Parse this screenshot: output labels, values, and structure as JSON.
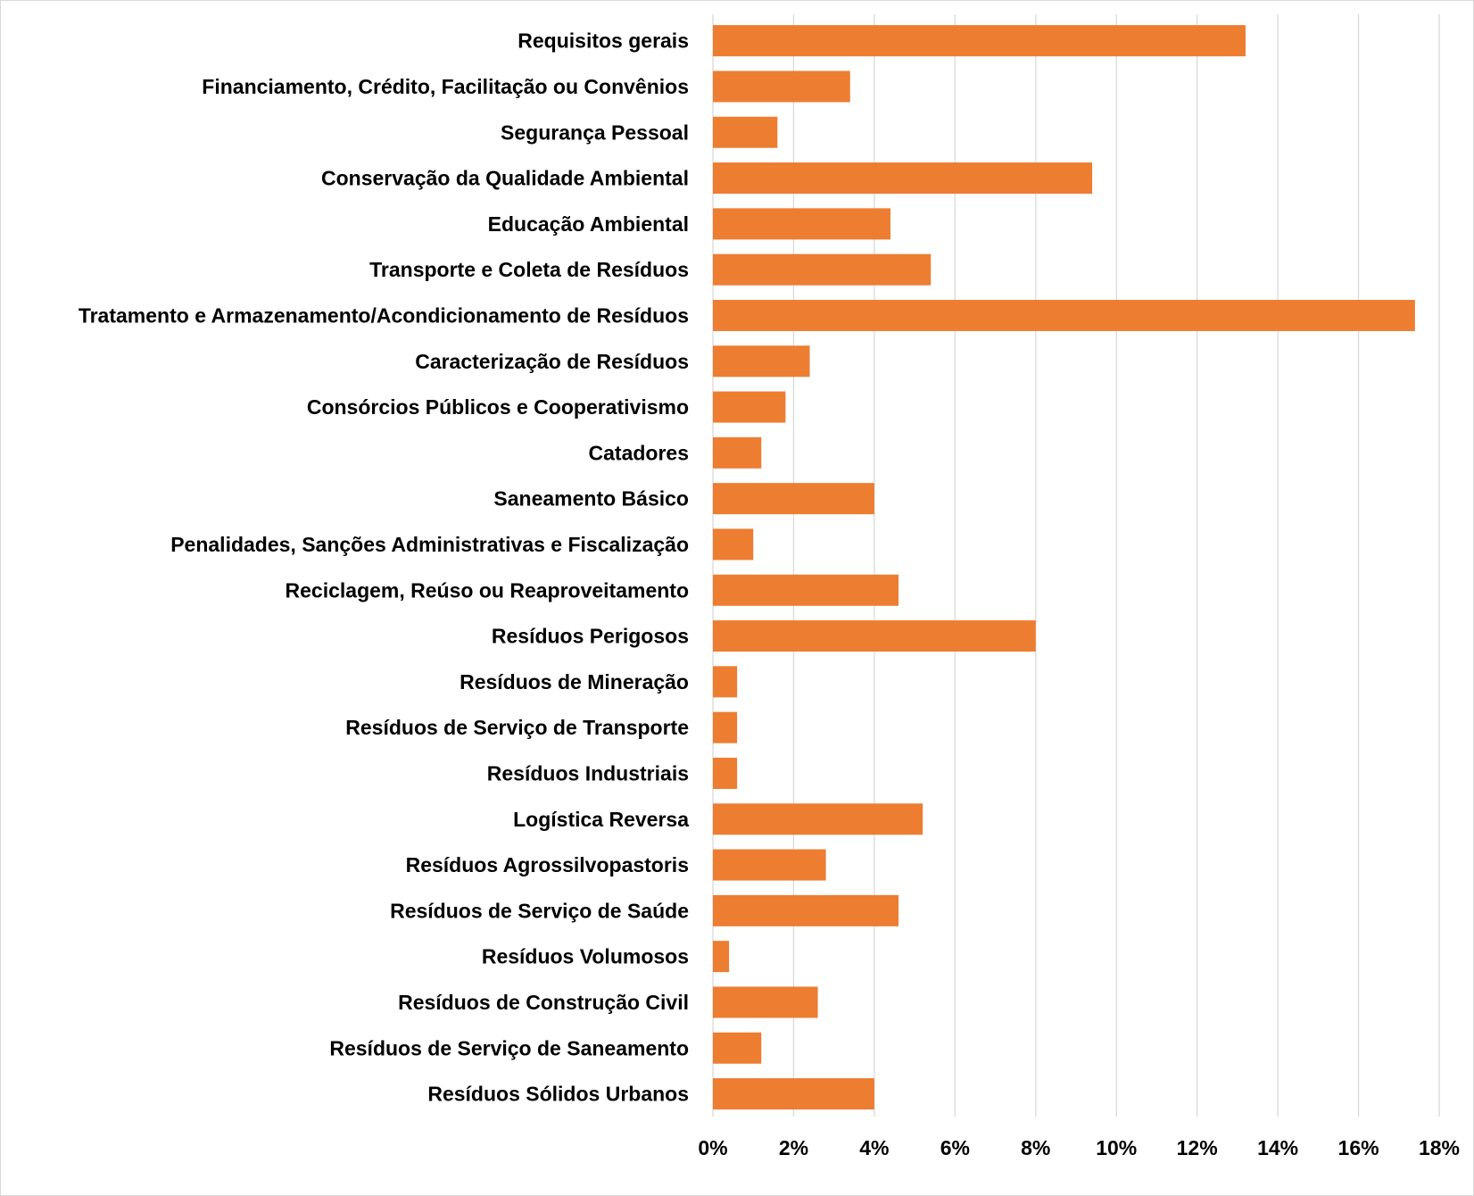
{
  "chart_data": {
    "type": "bar",
    "orientation": "horizontal",
    "title": "",
    "xlabel": "",
    "ylabel": "",
    "categories": [
      "Requisitos gerais",
      "Financiamento, Crédito, Facilitação ou Convênios",
      "Segurança Pessoal",
      "Conservação da Qualidade Ambiental",
      "Educação Ambiental",
      "Transporte e Coleta de Resíduos",
      "Tratamento e Armazenamento/Acondicionamento de Resíduos",
      "Caracterização de Resíduos",
      "Consórcios Públicos e Cooperativismo",
      "Catadores",
      "Saneamento Básico",
      "Penalidades, Sanções Administrativas e Fiscalização",
      "Reciclagem, Reúso ou Reaproveitamento",
      "Resíduos Perigosos",
      "Resíduos de Mineração",
      "Resíduos de Serviço de Transporte",
      "Resíduos Industriais",
      "Logística Reversa",
      "Resíduos Agrossilvopastoris",
      "Resíduos de Serviço de Saúde",
      "Resíduos Volumosos",
      "Resíduos de Construção Civil",
      "Resíduos de Serviço de Saneamento",
      "Resíduos Sólidos Urbanos"
    ],
    "values": [
      13.2,
      3.4,
      1.6,
      9.4,
      4.4,
      5.4,
      17.4,
      2.4,
      1.8,
      1.2,
      4.0,
      1.0,
      4.6,
      8.0,
      0.6,
      0.6,
      0.6,
      5.2,
      2.8,
      4.6,
      0.4,
      2.6,
      1.2,
      4.0
    ],
    "xlim": [
      0,
      18
    ],
    "ticks": [
      "0%",
      "2%",
      "4%",
      "6%",
      "8%",
      "10%",
      "12%",
      "14%",
      "16%",
      "18%"
    ],
    "tick_values": [
      0,
      2,
      4,
      6,
      8,
      10,
      12,
      14,
      16,
      18
    ],
    "unit": "%",
    "grid": "vertical",
    "legend": "none",
    "colors": {
      "bar": "#ED7D31",
      "grid": "#D9D9D9",
      "text": "#000000"
    }
  }
}
